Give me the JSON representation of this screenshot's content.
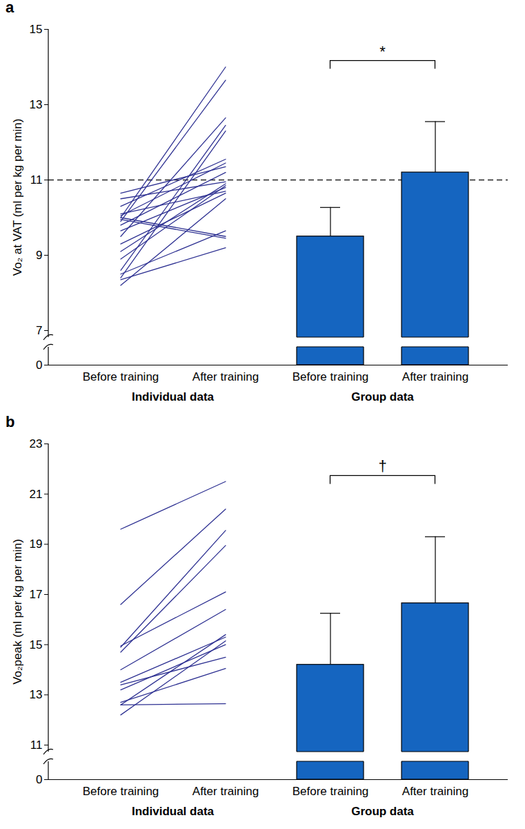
{
  "chart_data": [
    {
      "type": "bar",
      "title": "a",
      "y_label": "Vo₂ at VAT (ml per kg per min)",
      "categories": [
        "Before training",
        "After training",
        "Before training",
        "After training"
      ],
      "x_groups": [
        "Individual data",
        "Group data"
      ],
      "ylim": [
        0,
        15
      ],
      "yticks": [
        0,
        7,
        9,
        11,
        13,
        15
      ],
      "reference_line": 11,
      "individual": {
        "type": "line",
        "color": "#2e3192",
        "before": [
          10.0,
          9.9,
          9.5,
          8.6,
          8.4,
          10.3,
          10.05,
          10.65,
          9.8,
          10.5,
          9.1,
          8.9,
          10.1,
          9.3,
          8.2,
          10.0,
          9.95,
          8.5,
          8.35,
          9.65
        ],
        "after": [
          14.0,
          13.65,
          12.65,
          12.45,
          12.3,
          11.55,
          11.45,
          11.35,
          11.2,
          10.95,
          10.9,
          10.85,
          10.7,
          10.65,
          10.5,
          9.5,
          9.45,
          9.65,
          9.2,
          10.8
        ]
      },
      "group": {
        "type": "bar",
        "color": "#1565c0",
        "values": [
          9.5,
          11.2
        ],
        "errors": [
          0.77,
          1.35
        ]
      },
      "significance": "*"
    },
    {
      "type": "bar",
      "title": "b",
      "y_label": "Vo₂peak (ml per kg per min)",
      "categories": [
        "Before training",
        "After training",
        "Before training",
        "After training"
      ],
      "x_groups": [
        "Individual data",
        "Group data"
      ],
      "ylim": [
        0,
        23
      ],
      "yticks": [
        0,
        11,
        13,
        15,
        17,
        19,
        21,
        23
      ],
      "individual": {
        "type": "line",
        "color": "#2e3192",
        "before": [
          19.6,
          16.6,
          14.9,
          14.7,
          14.95,
          14.0,
          12.6,
          13.5,
          12.2,
          13.2,
          13.4,
          12.7,
          12.6
        ],
        "after": [
          21.5,
          20.4,
          19.55,
          18.95,
          17.1,
          16.4,
          15.4,
          15.3,
          15.15,
          15.0,
          14.5,
          14.05,
          12.65
        ]
      },
      "group": {
        "type": "bar",
        "color": "#1565c0",
        "values": [
          14.2,
          16.65
        ],
        "errors": [
          2.05,
          2.65
        ]
      },
      "significance": "†"
    }
  ]
}
